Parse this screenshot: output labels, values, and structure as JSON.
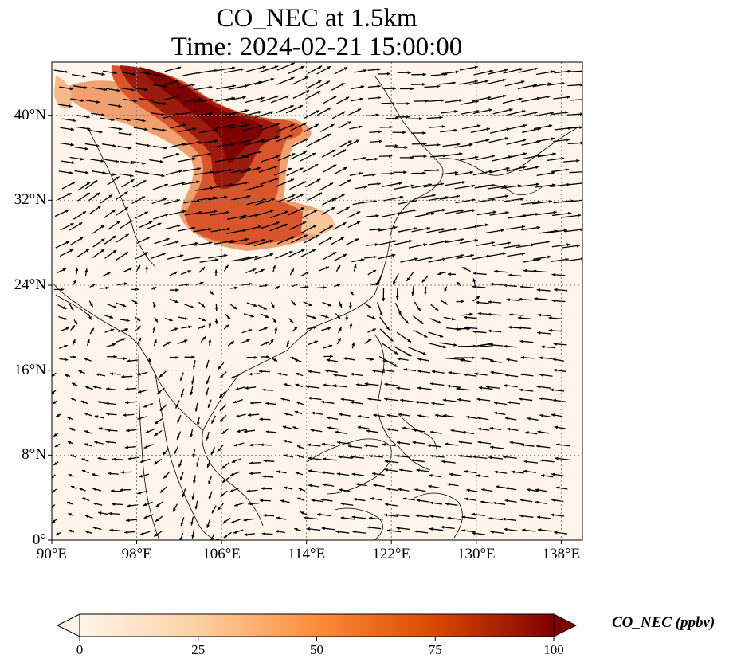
{
  "title": {
    "line1": "CO_NEC at 1.5km",
    "line2": "Time: 2024-02-21 15:00:00"
  },
  "map": {
    "lon_range": [
      90,
      140
    ],
    "lat_range": [
      0,
      45
    ],
    "gridlines": "dotted",
    "lat_ticks": [
      {
        "value": 40,
        "label": "40°N"
      },
      {
        "value": 32,
        "label": "32°N"
      },
      {
        "value": 24,
        "label": "24°N"
      },
      {
        "value": 16,
        "label": "16°N"
      },
      {
        "value": 8,
        "label": "8°N"
      },
      {
        "value": 0,
        "label": "0°"
      }
    ],
    "lon_ticks": [
      {
        "value": 90,
        "label": "90°E"
      },
      {
        "value": 98,
        "label": "98°E"
      },
      {
        "value": 106,
        "label": "106°E"
      },
      {
        "value": 114,
        "label": "114°E"
      },
      {
        "value": 122,
        "label": "122°E"
      },
      {
        "value": 130,
        "label": "130°E"
      },
      {
        "value": 138,
        "label": "138°E"
      }
    ],
    "background_color": "#fff5eb",
    "plume_color": "#8b0000",
    "wind_arrows": "black quiver, recirculating flow north of 24°N, easterlies over the western Pacific",
    "plume": {
      "lon_range": [
        95,
        117
      ],
      "lat_range": [
        27,
        45
      ],
      "peak_ppbv": 100
    }
  },
  "colorbar": {
    "label": "CO_NEC (ppbv)",
    "ticks": [
      "0",
      "25",
      "50",
      "75",
      "100"
    ],
    "colors": [
      "#fff5eb",
      "#fdd0a2",
      "#fd8d3c",
      "#d94801",
      "#7f0000"
    ],
    "range": [
      0,
      100
    ],
    "extend": "both"
  }
}
